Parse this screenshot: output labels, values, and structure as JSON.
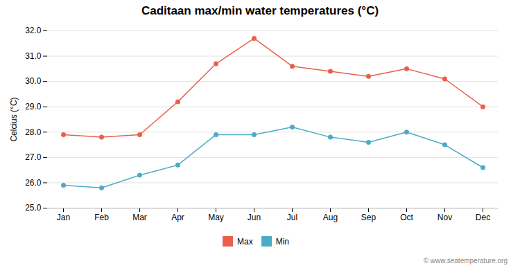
{
  "chart_data": {
    "type": "line",
    "title": "Caditaan max/min water temperatures (°C)",
    "y_label": "Celcius (°C)",
    "categories": [
      "Jan",
      "Feb",
      "Mar",
      "Apr",
      "May",
      "Jun",
      "Jul",
      "Aug",
      "Sep",
      "Oct",
      "Nov",
      "Dec"
    ],
    "series": [
      {
        "name": "Max",
        "color": "#e8604c",
        "marker": "circle",
        "values": [
          27.9,
          27.8,
          27.9,
          29.2,
          30.7,
          31.7,
          30.6,
          30.4,
          30.2,
          30.5,
          30.1,
          29.0
        ]
      },
      {
        "name": "Min",
        "color": "#4bacc6",
        "marker": "circle",
        "values": [
          25.9,
          25.8,
          26.3,
          26.7,
          27.9,
          27.9,
          28.2,
          27.8,
          27.6,
          28.0,
          27.5,
          26.6
        ]
      }
    ],
    "ylim": [
      25,
      32
    ],
    "yticks": [
      25,
      26,
      27,
      28,
      29,
      30,
      31,
      32
    ],
    "grid": true,
    "legend": "bottom",
    "annotations": [
      "© www.seatemperature.org"
    ]
  }
}
